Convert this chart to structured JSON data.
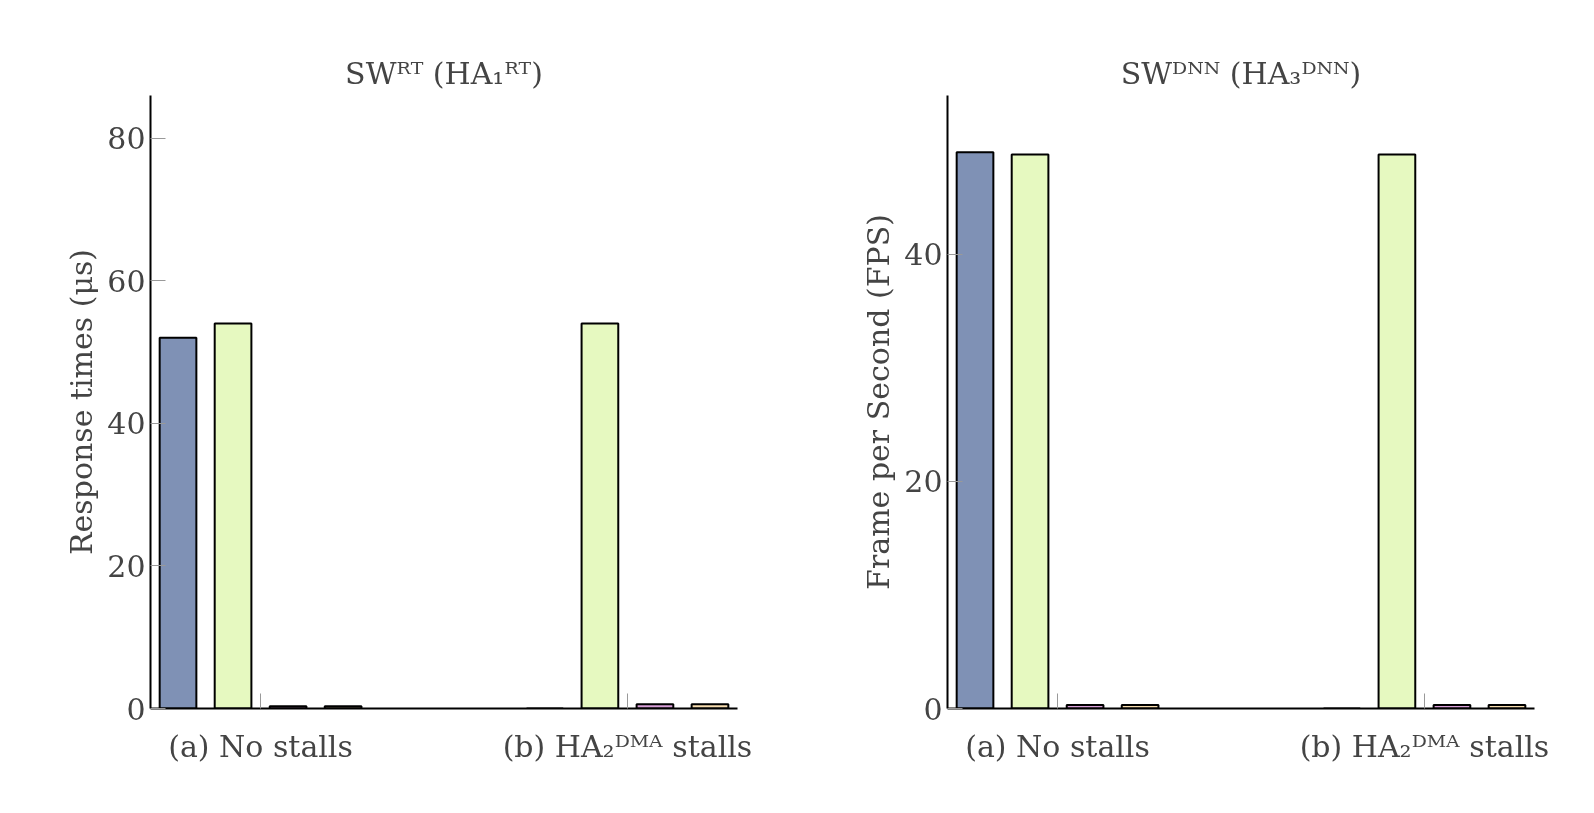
{
  "chart_data": [
    {
      "type": "bar",
      "title": "SWᴿᵀ (HA₁ᴿᵀ)",
      "ylabel": "Response times (μs)",
      "categories": [
        "(a) No stalls",
        "(b) HA₂ᴰᴹᴬ stalls"
      ],
      "ylim": [
        0,
        86
      ],
      "yticks": [
        0,
        20,
        40,
        60,
        80
      ],
      "grid": false,
      "series": [
        {
          "color": "#7f91b5",
          "values": [
            52.0,
            0
          ]
        },
        {
          "color": "#e6f9c0",
          "values": [
            54.0,
            54.0
          ]
        },
        {
          "color": "#d9a0d9",
          "values": [
            0.3,
            0.6
          ]
        },
        {
          "color": "#f7ddb0",
          "values": [
            0.3,
            0.6
          ]
        }
      ]
    },
    {
      "type": "bar",
      "title": "SWᴰᴺᴺ (HA₃ᴰᴺᴺ)",
      "ylabel": "Frame per Second (FPS)",
      "categories": [
        "(a) No stalls",
        "(b) HA₂ᴰᴹᴬ stalls"
      ],
      "ylim": [
        0,
        54
      ],
      "yticks": [
        0,
        20,
        40
      ],
      "grid": false,
      "series": [
        {
          "color": "#7f91b5",
          "values": [
            49.0,
            0
          ]
        },
        {
          "color": "#e6f9c0",
          "values": [
            48.8,
            48.8
          ]
        },
        {
          "color": "#d9a0d9",
          "values": [
            0.3,
            0.3
          ]
        },
        {
          "color": "#f7ddb0",
          "values": [
            0.3,
            0.3
          ]
        }
      ]
    }
  ]
}
